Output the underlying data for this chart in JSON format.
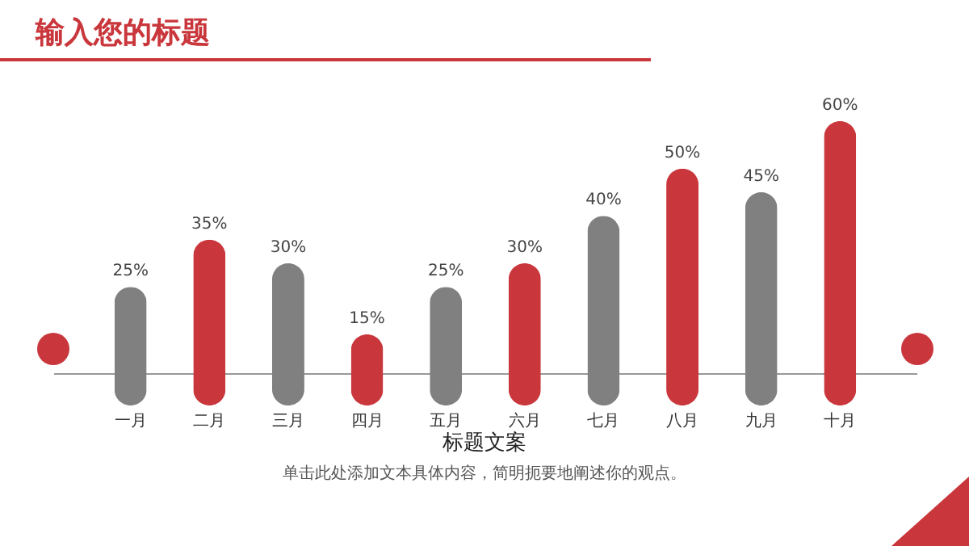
{
  "chart_data": {
    "type": "bar",
    "title": "输入您的标题",
    "categories": [
      "一月",
      "二月",
      "三月",
      "四月",
      "五月",
      "六月",
      "七月",
      "八月",
      "九月",
      "十月"
    ],
    "values": [
      25,
      35,
      30,
      15,
      25,
      30,
      40,
      50,
      45,
      60
    ],
    "value_labels": [
      "25%",
      "35%",
      "30%",
      "15%",
      "25%",
      "30%",
      "40%",
      "50%",
      "45%",
      "60%"
    ],
    "colors": [
      "#808080",
      "#c9373c",
      "#808080",
      "#c9373c",
      "#808080",
      "#c9373c",
      "#808080",
      "#c9373c",
      "#808080",
      "#c9373c"
    ],
    "annotations": [
      "标题文案",
      "单击此处添加文本具体内容，简明扼要地阐述你的观点。"
    ]
  }
}
